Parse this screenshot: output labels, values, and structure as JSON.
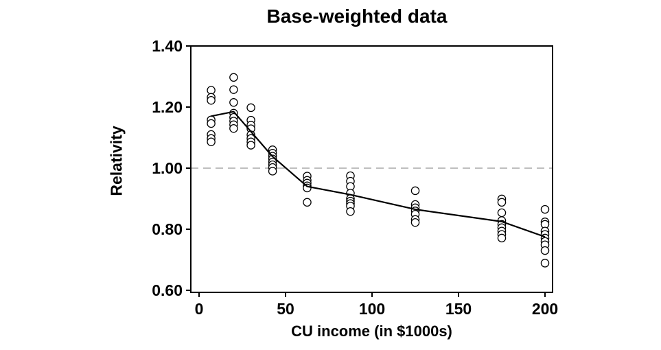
{
  "window": {
    "background": "#ffffff"
  },
  "chart_data": {
    "type": "scatter",
    "title": "Base-weighted data",
    "xlabel": "CU income (in $1000s)",
    "ylabel": "Relativity",
    "xlim": [
      -5,
      204
    ],
    "ylim": [
      0.59,
      1.4
    ],
    "grid": false,
    "legend": "none",
    "x_ticks": [
      {
        "value": 0,
        "label": "0"
      },
      {
        "value": 50,
        "label": "50"
      },
      {
        "value": 100,
        "label": "100"
      },
      {
        "value": 150,
        "label": "150"
      },
      {
        "value": 200,
        "label": "200"
      }
    ],
    "y_ticks": [
      {
        "value": 1.4,
        "label": "1.40"
      },
      {
        "value": 1.2,
        "label": "1.20"
      },
      {
        "value": 1.0,
        "label": "1.00"
      },
      {
        "value": 0.8,
        "label": "0.80"
      },
      {
        "value": 0.6,
        "label": "0.60"
      }
    ],
    "reference_line": {
      "y": 1.0,
      "style": "dashed",
      "color": "#a9a9a9"
    },
    "marker": {
      "shape": "open-circle",
      "stroke": "#000000",
      "fill": "#ffffff"
    },
    "line_color": "#000000",
    "scatter_groups": [
      {
        "x": 7,
        "values": [
          1.255,
          1.232,
          1.222,
          1.158,
          1.146,
          1.11,
          1.097,
          1.086
        ]
      },
      {
        "x": 20,
        "values": [
          1.297,
          1.257,
          1.215,
          1.18,
          1.166,
          1.154,
          1.142,
          1.13
        ]
      },
      {
        "x": 30,
        "values": [
          1.198,
          1.157,
          1.141,
          1.129,
          1.109,
          1.097,
          1.086,
          1.075
        ]
      },
      {
        "x": 42.5,
        "values": [
          1.06,
          1.049,
          1.039,
          1.03,
          1.02,
          1.011,
          1.002,
          0.99
        ]
      },
      {
        "x": 62.5,
        "values": [
          0.974,
          0.96,
          0.951,
          0.942,
          0.935,
          0.888
        ]
      },
      {
        "x": 87.5,
        "values": [
          0.975,
          0.957,
          0.94,
          0.918,
          0.9,
          0.892,
          0.884,
          0.876,
          0.858
        ]
      },
      {
        "x": 125,
        "values": [
          0.926,
          0.881,
          0.87,
          0.86,
          0.849,
          0.832,
          0.822
        ]
      },
      {
        "x": 175,
        "values": [
          0.899,
          0.888,
          0.854,
          0.828,
          0.816,
          0.805,
          0.794,
          0.783,
          0.771
        ]
      },
      {
        "x": 200,
        "values": [
          0.865,
          0.824,
          0.816,
          0.794,
          0.783,
          0.771,
          0.76,
          0.749,
          0.73,
          0.689
        ]
      }
    ],
    "trend_line": [
      [
        7,
        1.17
      ],
      [
        20,
        1.185
      ],
      [
        42.5,
        1.038
      ],
      [
        62.5,
        0.94
      ],
      [
        87.5,
        0.913
      ],
      [
        125,
        0.865
      ],
      [
        175,
        0.825
      ],
      [
        200,
        0.775
      ]
    ]
  }
}
